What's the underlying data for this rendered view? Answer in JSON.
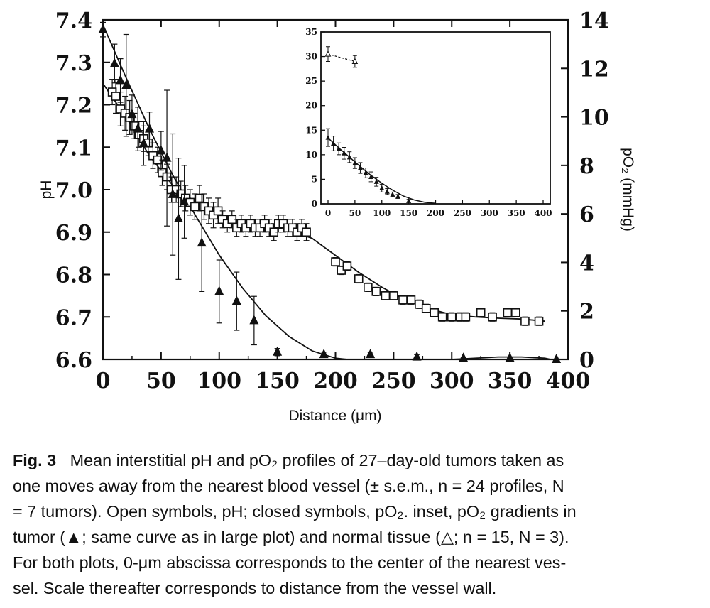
{
  "chart_data": [
    {
      "type": "scatter",
      "xlabel": "Distance (μm)",
      "ylabel": "pH",
      "y2label": "pO₂ (mmHg)",
      "xlim": [
        0,
        400
      ],
      "ylim": [
        6.6,
        7.4
      ],
      "y2lim": [
        0,
        14
      ],
      "xticks": [
        "0",
        "50",
        "100",
        "150",
        "200",
        "250",
        "300",
        "350",
        "400"
      ],
      "yticks": [
        "6.6",
        "6.7",
        "6.8",
        "6.9",
        "7.0",
        "7.1",
        "7.2",
        "7.3",
        "7.4"
      ],
      "y2ticks": [
        "0",
        "2",
        "4",
        "6",
        "8",
        "10",
        "12",
        "14"
      ],
      "grid": false,
      "series": [
        {
          "marker": "open-square",
          "axis": "left",
          "x": [
            8,
            11,
            15,
            19,
            23,
            27,
            31,
            35,
            39,
            43,
            47,
            51,
            55,
            59,
            63,
            67,
            71,
            75,
            79,
            83,
            87,
            91,
            95,
            99,
            103,
            107,
            111,
            115,
            119,
            123,
            127,
            131,
            135,
            139,
            143,
            147,
            151,
            155,
            159,
            163,
            167,
            171,
            175,
            200,
            205,
            210,
            220,
            228,
            235,
            243,
            250,
            258,
            265,
            272,
            278,
            285,
            292,
            300,
            307,
            312,
            325,
            335,
            348,
            355,
            363,
            375
          ],
          "y": [
            7.23,
            7.22,
            7.19,
            7.18,
            7.17,
            7.15,
            7.13,
            7.12,
            7.11,
            7.08,
            7.07,
            7.04,
            7.03,
            7.0,
            7.0,
            6.99,
            6.98,
            6.97,
            6.96,
            6.98,
            6.96,
            6.95,
            6.94,
            6.95,
            6.93,
            6.92,
            6.93,
            6.91,
            6.92,
            6.91,
            6.92,
            6.91,
            6.91,
            6.92,
            6.91,
            6.9,
            6.92,
            6.92,
            6.91,
            6.91,
            6.9,
            6.91,
            6.9,
            6.83,
            6.81,
            6.82,
            6.79,
            6.77,
            6.76,
            6.75,
            6.75,
            6.74,
            6.74,
            6.73,
            6.72,
            6.71,
            6.7,
            6.7,
            6.7,
            6.7,
            6.71,
            6.7,
            6.71,
            6.71,
            6.69,
            6.69
          ],
          "err": [
            0.03,
            0.04,
            0.04,
            0.04,
            0.04,
            0.03,
            0.03,
            0.03,
            0.03,
            0.03,
            0.03,
            0.03,
            0.03,
            0.03,
            0.03,
            0.03,
            0.03,
            0.03,
            0.03,
            0.03,
            0.03,
            0.03,
            0.03,
            0.03,
            0.02,
            0.02,
            0.02,
            0.02,
            0.02,
            0.02,
            0.02,
            0.02,
            0.02,
            0.02,
            0.02,
            0.02,
            0.02,
            0.02,
            0.02,
            0.02,
            0.02,
            0.02,
            0.02,
            0.01,
            0.01,
            0.01,
            0.01,
            0.01,
            0.01,
            0.01,
            0.01,
            0.01,
            0.01,
            0.01,
            0.01,
            0.01,
            0.01,
            0.01,
            0.01,
            0.01,
            0.01,
            0.01,
            0.01,
            0.01,
            0.01,
            0.01
          ]
        },
        {
          "marker": "filled-triangle",
          "axis": "right",
          "x": [
            0,
            10,
            15,
            20,
            25,
            30,
            35,
            40,
            50,
            55,
            60,
            65,
            70,
            85,
            100,
            115,
            130,
            150,
            190,
            230,
            270,
            310,
            350,
            390
          ],
          "y": [
            13.6,
            12.2,
            11.5,
            11.3,
            10.1,
            9.5,
            8.9,
            9.5,
            8.6,
            8.3,
            6.8,
            5.8,
            6.5,
            4.8,
            2.8,
            2.4,
            1.6,
            0.3,
            0.2,
            0.2,
            0.1,
            0.05,
            0.05,
            0.0
          ],
          "err": [
            0.3,
            0.8,
            0.9,
            2.1,
            0.8,
            0.9,
            0.9,
            0.7,
            0.8,
            2.8,
            2.5,
            2.5,
            1.5,
            2.0,
            1.3,
            1.2,
            1.0,
            0.15,
            0.1,
            0.1,
            0.1,
            0.05,
            0.05,
            0.0
          ]
        }
      ],
      "fits": [
        {
          "axis": "left",
          "x": [
            0,
            20,
            40,
            60,
            80,
            100,
            120,
            140,
            160,
            180,
            200,
            220,
            240,
            260,
            280,
            300,
            320,
            340,
            360,
            380
          ],
          "y": [
            7.25,
            7.17,
            7.08,
            7.01,
            6.97,
            6.94,
            6.92,
            6.915,
            6.905,
            6.885,
            6.845,
            6.805,
            6.77,
            6.74,
            6.72,
            6.705,
            6.7,
            6.697,
            6.695,
            6.69
          ]
        },
        {
          "axis": "right",
          "x": [
            0,
            20,
            40,
            60,
            80,
            100,
            120,
            140,
            160,
            180,
            200,
            220,
            240,
            260,
            300,
            340,
            360,
            380,
            395
          ],
          "y": [
            13.8,
            11.6,
            9.5,
            7.6,
            5.9,
            4.3,
            2.95,
            1.8,
            0.95,
            0.35,
            0.05,
            -0.05,
            -0.1,
            -0.1,
            0.0,
            0.1,
            0.1,
            0.05,
            -0.1
          ]
        }
      ]
    },
    {
      "type": "scatter",
      "role": "inset",
      "xlim": [
        0,
        400
      ],
      "ylim": [
        0,
        35
      ],
      "xticks": [
        "0",
        "50",
        "100",
        "150",
        "200",
        "250",
        "300",
        "350",
        "400"
      ],
      "yticks": [
        "0",
        "5",
        "10",
        "15",
        "20",
        "25",
        "30",
        "35"
      ],
      "series": [
        {
          "marker": "open-triangle",
          "x": [
            0,
            50
          ],
          "y": [
            30.5,
            29.0
          ],
          "err": [
            1.5,
            1.2
          ]
        },
        {
          "marker": "filled-triangle",
          "x": [
            0,
            10,
            20,
            30,
            40,
            50,
            60,
            70,
            80,
            90,
            100,
            110,
            120,
            130,
            150
          ],
          "y": [
            13.5,
            12.3,
            11.2,
            10.3,
            9.5,
            8.3,
            7.3,
            6.3,
            5.5,
            4.5,
            3.2,
            2.5,
            1.9,
            1.5,
            0.6
          ],
          "err": [
            1.8,
            1.5,
            1.2,
            1.2,
            1.1,
            1.1,
            1.1,
            1.0,
            1.0,
            0.9,
            0.8,
            0.6,
            0.5,
            0.4,
            0.3
          ]
        }
      ],
      "fits": [
        {
          "x": [
            0,
            20,
            40,
            60,
            80,
            100,
            120,
            140,
            160,
            180,
            200
          ],
          "y": [
            13.4,
            11.4,
            9.5,
            7.6,
            5.8,
            4.2,
            2.8,
            1.6,
            0.8,
            0.3,
            0.1
          ]
        }
      ]
    }
  ],
  "caption": {
    "label": "Fig. 3",
    "lines": [
      "Mean interstitial pH and pO₂ profiles of 27–day-old tumors taken as",
      "one moves away from the nearest blood vessel (± s.e.m., n = 24 profiles, N",
      "= 7 tumors). Open symbols, pH; closed symbols, pO₂. inset, pO₂ gradients in",
      "tumor (▲; same curve as in large plot) and normal tissue (△; n = 15, N = 3).",
      "For both plots, 0-μm abscissa corresponds to the center of the nearest ves-",
      "sel. Scale thereafter corresponds to distance from the vessel wall."
    ]
  }
}
